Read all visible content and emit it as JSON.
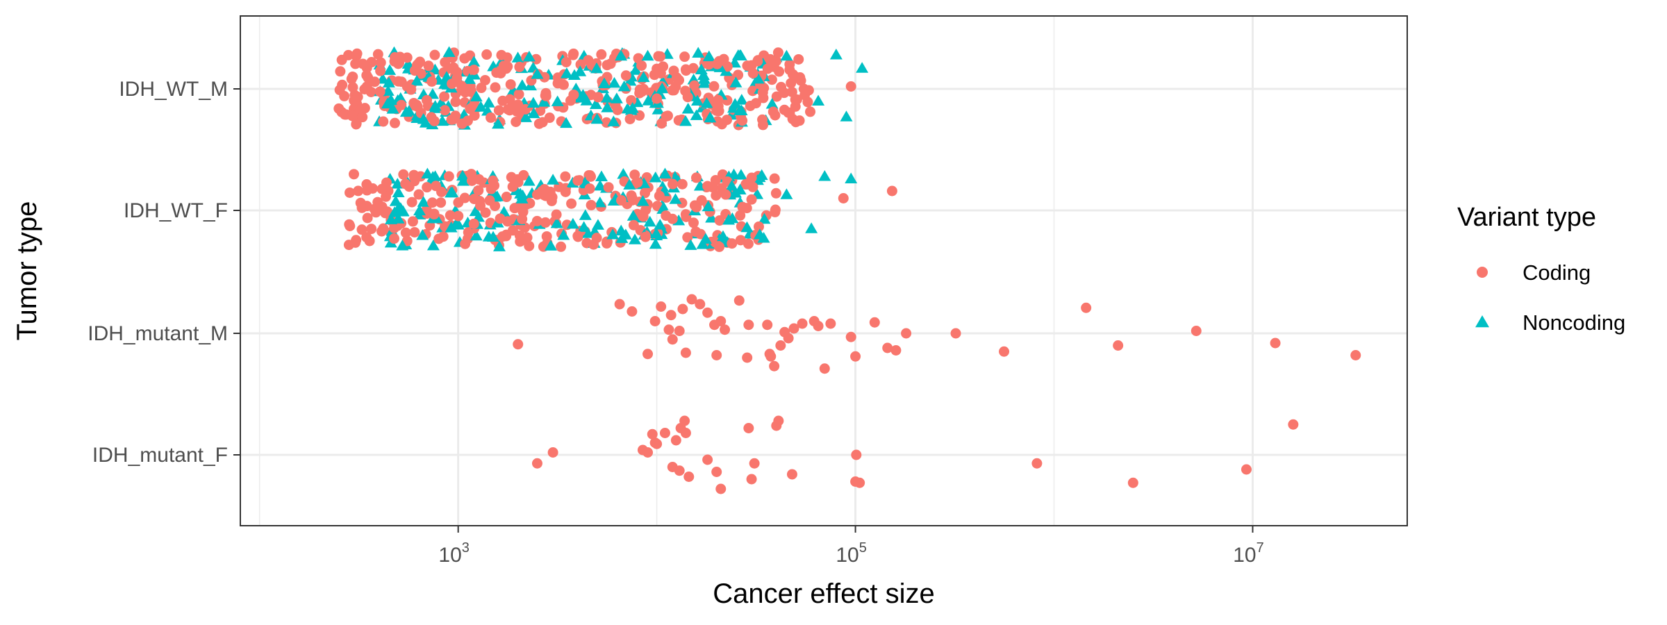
{
  "chart_data": {
    "type": "scatter",
    "title": "",
    "xlabel": "Cancer effect size",
    "ylabel": "Tumor type",
    "x_scale": "log10",
    "xlim": [
      80,
      60000000
    ],
    "x_ticks": [
      {
        "value": 1000,
        "base": "10",
        "exp": "3"
      },
      {
        "value": 100000,
        "base": "10",
        "exp": "5"
      },
      {
        "value": 10000000,
        "base": "10",
        "exp": "7"
      }
    ],
    "categories": [
      "IDH_WT_M",
      "IDH_WT_F",
      "IDH_mutant_M",
      "IDH_mutant_F"
    ],
    "grid": true,
    "legend": {
      "title": "Variant type",
      "position": "right"
    },
    "series": [
      {
        "name": "Coding",
        "color": "#F8766D",
        "marker": "circle",
        "points": [
          {
            "category": "IDH_mutant_M",
            "x": 2000,
            "jitter": -0.09
          },
          {
            "category": "IDH_mutant_M",
            "x": 6500,
            "jitter": 0.24
          },
          {
            "category": "IDH_mutant_M",
            "x": 7500,
            "jitter": 0.18
          },
          {
            "category": "IDH_mutant_M",
            "x": 9000,
            "jitter": -0.17
          },
          {
            "category": "IDH_mutant_M",
            "x": 9800,
            "jitter": 0.1
          },
          {
            "category": "IDH_mutant_M",
            "x": 10500,
            "jitter": 0.22
          },
          {
            "category": "IDH_mutant_M",
            "x": 11500,
            "jitter": 0.03
          },
          {
            "category": "IDH_mutant_M",
            "x": 11800,
            "jitter": 0.15
          },
          {
            "category": "IDH_mutant_M",
            "x": 12000,
            "jitter": -0.05
          },
          {
            "category": "IDH_mutant_M",
            "x": 13000,
            "jitter": 0.02
          },
          {
            "category": "IDH_mutant_M",
            "x": 13500,
            "jitter": 0.2
          },
          {
            "category": "IDH_mutant_M",
            "x": 14000,
            "jitter": -0.16
          },
          {
            "category": "IDH_mutant_M",
            "x": 15000,
            "jitter": 0.28
          },
          {
            "category": "IDH_mutant_M",
            "x": 16500,
            "jitter": 0.24
          },
          {
            "category": "IDH_mutant_M",
            "x": 18000,
            "jitter": 0.17
          },
          {
            "category": "IDH_mutant_M",
            "x": 19500,
            "jitter": 0.07
          },
          {
            "category": "IDH_mutant_M",
            "x": 20000,
            "jitter": -0.18
          },
          {
            "category": "IDH_mutant_M",
            "x": 21000,
            "jitter": 0.1
          },
          {
            "category": "IDH_mutant_M",
            "x": 22000,
            "jitter": 0.03
          },
          {
            "category": "IDH_mutant_M",
            "x": 26000,
            "jitter": 0.27
          },
          {
            "category": "IDH_mutant_M",
            "x": 28500,
            "jitter": -0.2
          },
          {
            "category": "IDH_mutant_M",
            "x": 29000,
            "jitter": 0.07
          },
          {
            "category": "IDH_mutant_M",
            "x": 36000,
            "jitter": 0.07
          },
          {
            "category": "IDH_mutant_M",
            "x": 37000,
            "jitter": -0.17
          },
          {
            "category": "IDH_mutant_M",
            "x": 37500,
            "jitter": -0.19
          },
          {
            "category": "IDH_mutant_M",
            "x": 39000,
            "jitter": -0.27
          },
          {
            "category": "IDH_mutant_M",
            "x": 42000,
            "jitter": -0.1
          },
          {
            "category": "IDH_mutant_M",
            "x": 44000,
            "jitter": 0.01
          },
          {
            "category": "IDH_mutant_M",
            "x": 46000,
            "jitter": -0.04
          },
          {
            "category": "IDH_mutant_M",
            "x": 49000,
            "jitter": 0.04
          },
          {
            "category": "IDH_mutant_M",
            "x": 54000,
            "jitter": 0.08
          },
          {
            "category": "IDH_mutant_M",
            "x": 62000,
            "jitter": 0.1
          },
          {
            "category": "IDH_mutant_M",
            "x": 65000,
            "jitter": 0.06
          },
          {
            "category": "IDH_mutant_M",
            "x": 70000,
            "jitter": -0.29
          },
          {
            "category": "IDH_mutant_M",
            "x": 75000,
            "jitter": 0.08
          },
          {
            "category": "IDH_mutant_M",
            "x": 95000,
            "jitter": -0.03
          },
          {
            "category": "IDH_mutant_M",
            "x": 100000,
            "jitter": -0.19
          },
          {
            "category": "IDH_mutant_M",
            "x": 125000,
            "jitter": 0.09
          },
          {
            "category": "IDH_mutant_M",
            "x": 145000,
            "jitter": -0.12
          },
          {
            "category": "IDH_mutant_M",
            "x": 160000,
            "jitter": -0.14
          },
          {
            "category": "IDH_mutant_M",
            "x": 180000,
            "jitter": 0.0
          },
          {
            "category": "IDH_mutant_M",
            "x": 320000,
            "jitter": 0.0
          },
          {
            "category": "IDH_mutant_M",
            "x": 560000,
            "jitter": -0.15
          },
          {
            "category": "IDH_mutant_M",
            "x": 1450000,
            "jitter": 0.21
          },
          {
            "category": "IDH_mutant_M",
            "x": 2100000,
            "jitter": -0.1
          },
          {
            "category": "IDH_mutant_M",
            "x": 5200000,
            "jitter": 0.02
          },
          {
            "category": "IDH_mutant_M",
            "x": 13000000,
            "jitter": -0.08
          },
          {
            "category": "IDH_mutant_M",
            "x": 33000000,
            "jitter": -0.18
          },
          {
            "category": "IDH_mutant_F",
            "x": 2500,
            "jitter": -0.07
          },
          {
            "category": "IDH_mutant_F",
            "x": 3000,
            "jitter": 0.02
          },
          {
            "category": "IDH_mutant_F",
            "x": 8500,
            "jitter": 0.04
          },
          {
            "category": "IDH_mutant_F",
            "x": 9000,
            "jitter": 0.02
          },
          {
            "category": "IDH_mutant_F",
            "x": 9500,
            "jitter": 0.17
          },
          {
            "category": "IDH_mutant_F",
            "x": 9800,
            "jitter": 0.1
          },
          {
            "category": "IDH_mutant_F",
            "x": 10000,
            "jitter": 0.09
          },
          {
            "category": "IDH_mutant_F",
            "x": 11000,
            "jitter": 0.18
          },
          {
            "category": "IDH_mutant_F",
            "x": 12000,
            "jitter": -0.1
          },
          {
            "category": "IDH_mutant_F",
            "x": 12500,
            "jitter": 0.12
          },
          {
            "category": "IDH_mutant_F",
            "x": 13000,
            "jitter": -0.13
          },
          {
            "category": "IDH_mutant_F",
            "x": 13200,
            "jitter": 0.22
          },
          {
            "category": "IDH_mutant_F",
            "x": 13800,
            "jitter": 0.28
          },
          {
            "category": "IDH_mutant_F",
            "x": 14000,
            "jitter": 0.18
          },
          {
            "category": "IDH_mutant_F",
            "x": 14500,
            "jitter": -0.18
          },
          {
            "category": "IDH_mutant_F",
            "x": 18000,
            "jitter": -0.04
          },
          {
            "category": "IDH_mutant_F",
            "x": 20000,
            "jitter": -0.14
          },
          {
            "category": "IDH_mutant_F",
            "x": 21000,
            "jitter": -0.28
          },
          {
            "category": "IDH_mutant_F",
            "x": 29000,
            "jitter": 0.22
          },
          {
            "category": "IDH_mutant_F",
            "x": 30000,
            "jitter": -0.2
          },
          {
            "category": "IDH_mutant_F",
            "x": 31000,
            "jitter": -0.07
          },
          {
            "category": "IDH_mutant_F",
            "x": 40000,
            "jitter": 0.24
          },
          {
            "category": "IDH_mutant_F",
            "x": 41000,
            "jitter": 0.28
          },
          {
            "category": "IDH_mutant_F",
            "x": 48000,
            "jitter": -0.16
          },
          {
            "category": "IDH_mutant_F",
            "x": 100000,
            "jitter": -0.22
          },
          {
            "category": "IDH_mutant_F",
            "x": 101000,
            "jitter": 0.0
          },
          {
            "category": "IDH_mutant_F",
            "x": 105000,
            "jitter": -0.23
          },
          {
            "category": "IDH_mutant_F",
            "x": 820000,
            "jitter": -0.07
          },
          {
            "category": "IDH_mutant_F",
            "x": 2500000,
            "jitter": -0.23
          },
          {
            "category": "IDH_mutant_F",
            "x": 9300000,
            "jitter": -0.12
          },
          {
            "category": "IDH_mutant_F",
            "x": 16000000,
            "jitter": 0.25
          },
          {
            "category": "IDH_WT_M",
            "x": 480,
            "jitter": 0.26
          },
          {
            "category": "IDH_WT_M",
            "x": 2000,
            "jitter": -0.13
          },
          {
            "category": "IDH_WT_M",
            "x": 3500,
            "jitter": 0.22
          },
          {
            "category": "IDH_WT_M",
            "x": 5000,
            "jitter": -0.24
          },
          {
            "category": "IDH_WT_M",
            "x": 7000,
            "jitter": 0.11
          },
          {
            "category": "IDH_WT_M",
            "x": 10000,
            "jitter": -0.08
          },
          {
            "category": "IDH_WT_M",
            "x": 14000,
            "jitter": 0.16
          },
          {
            "category": "IDH_WT_M",
            "x": 20000,
            "jitter": -0.18
          },
          {
            "category": "IDH_WT_M",
            "x": 55000,
            "jitter": 0.0
          },
          {
            "category": "IDH_WT_M",
            "x": 95000,
            "jitter": 0.02
          },
          {
            "category": "IDH_WT_F",
            "x": 600,
            "jitter": 0.28
          },
          {
            "category": "IDH_WT_F",
            "x": 1200,
            "jitter": -0.11
          },
          {
            "category": "IDH_WT_F",
            "x": 2500,
            "jitter": 0.13
          },
          {
            "category": "IDH_WT_F",
            "x": 4000,
            "jitter": -0.21
          },
          {
            "category": "IDH_WT_F",
            "x": 8000,
            "jitter": 0.23
          },
          {
            "category": "IDH_WT_F",
            "x": 12000,
            "jitter": -0.07
          },
          {
            "category": "IDH_WT_F",
            "x": 18000,
            "jitter": 0.2
          },
          {
            "category": "IDH_WT_F",
            "x": 30000,
            "jitter": 0.09
          },
          {
            "category": "IDH_WT_F",
            "x": 87000,
            "jitter": 0.1
          },
          {
            "category": "IDH_WT_F",
            "x": 153000,
            "jitter": 0.16
          }
        ]
      },
      {
        "name": "Noncoding",
        "color": "#00BFC4",
        "marker": "triangle",
        "points": [
          {
            "category": "IDH_WT_M",
            "x": 900,
            "jitter": 0.3
          },
          {
            "category": "IDH_WT_M",
            "x": 1300,
            "jitter": -0.15
          },
          {
            "category": "IDH_WT_M",
            "x": 2500,
            "jitter": 0.12
          },
          {
            "category": "IDH_WT_M",
            "x": 5000,
            "jitter": -0.25
          },
          {
            "category": "IDH_WT_M",
            "x": 9000,
            "jitter": 0.27
          },
          {
            "category": "IDH_WT_M",
            "x": 16000,
            "jitter": -0.1
          },
          {
            "category": "IDH_WT_M",
            "x": 25000,
            "jitter": 0.05
          },
          {
            "category": "IDH_WT_M",
            "x": 45000,
            "jitter": 0.27
          },
          {
            "category": "IDH_WT_M",
            "x": 65000,
            "jitter": -0.1
          },
          {
            "category": "IDH_WT_M",
            "x": 80000,
            "jitter": 0.28
          },
          {
            "category": "IDH_WT_M",
            "x": 90000,
            "jitter": -0.23
          },
          {
            "category": "IDH_WT_M",
            "x": 108000,
            "jitter": 0.17
          },
          {
            "category": "IDH_WT_F",
            "x": 500,
            "jitter": -0.07
          },
          {
            "category": "IDH_WT_F",
            "x": 700,
            "jitter": 0.3
          },
          {
            "category": "IDH_WT_F",
            "x": 1500,
            "jitter": -0.22
          },
          {
            "category": "IDH_WT_F",
            "x": 3000,
            "jitter": 0.25
          },
          {
            "category": "IDH_WT_F",
            "x": 6000,
            "jitter": -0.2
          },
          {
            "category": "IDH_WT_F",
            "x": 11000,
            "jitter": 0.3
          },
          {
            "category": "IDH_WT_F",
            "x": 17000,
            "jitter": -0.28
          },
          {
            "category": "IDH_WT_F",
            "x": 23000,
            "jitter": -0.08
          },
          {
            "category": "IDH_WT_F",
            "x": 33000,
            "jitter": -0.2
          },
          {
            "category": "IDH_WT_F",
            "x": 45000,
            "jitter": 0.13
          },
          {
            "category": "IDH_WT_F",
            "x": 60000,
            "jitter": -0.15
          },
          {
            "category": "IDH_WT_F",
            "x": 70000,
            "jitter": 0.28
          },
          {
            "category": "IDH_WT_F",
            "x": 95000,
            "jitter": 0.26
          }
        ]
      }
    ],
    "dense_clusters": [
      {
        "series": "Coding",
        "category": "IDH_WT_M",
        "x_range": [
          250,
          60000
        ],
        "count": 330
      },
      {
        "series": "Noncoding",
        "category": "IDH_WT_M",
        "x_range": [
          400,
          40000
        ],
        "count": 170
      },
      {
        "series": "Coding",
        "category": "IDH_WT_F",
        "x_range": [
          280,
          40000
        ],
        "count": 260
      },
      {
        "series": "Noncoding",
        "category": "IDH_WT_F",
        "x_range": [
          450,
          35000
        ],
        "count": 150
      }
    ]
  }
}
